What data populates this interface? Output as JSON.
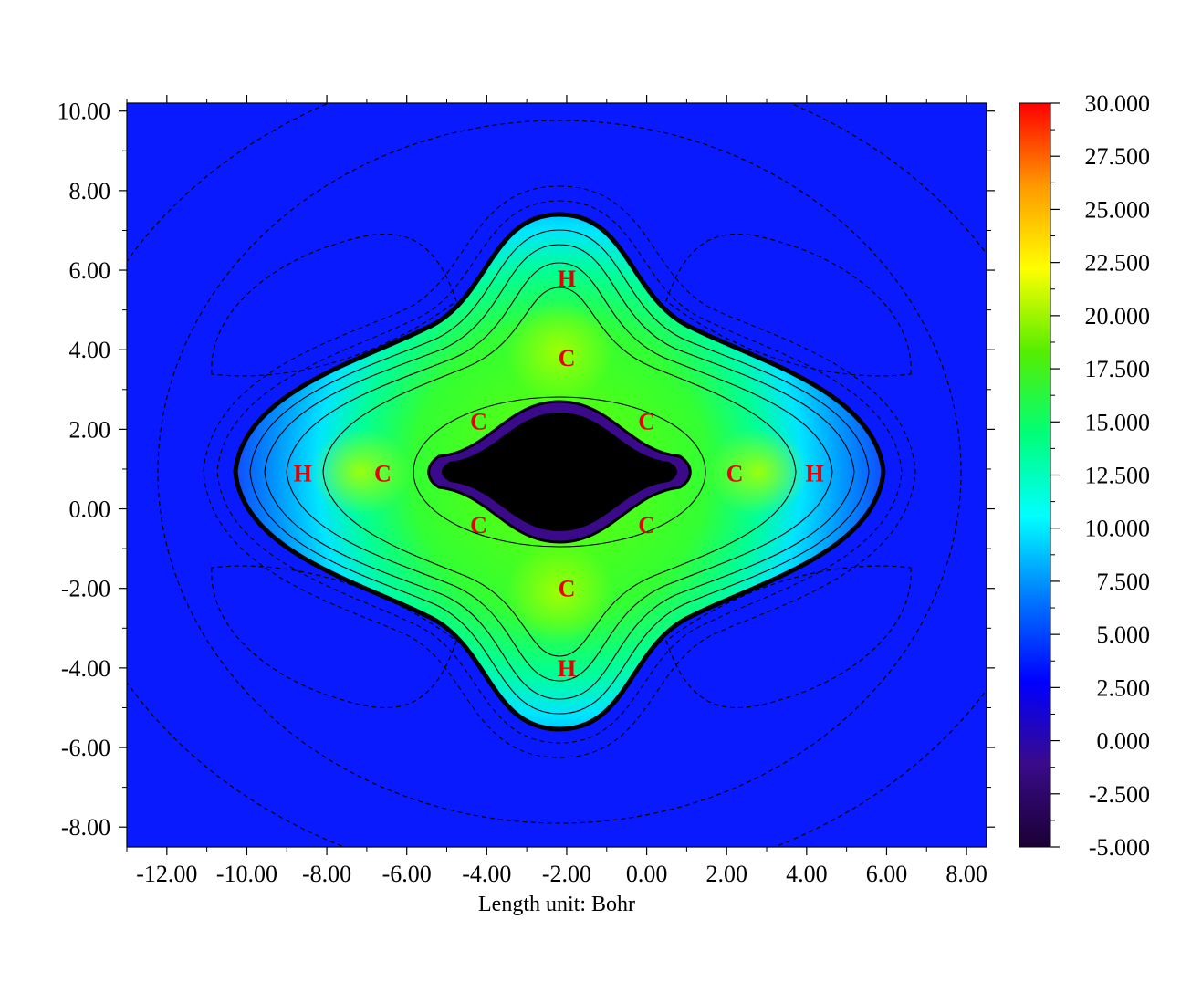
{
  "chart_data": {
    "type": "heatmap",
    "title": "",
    "xlabel": "Length unit: Bohr",
    "ylabel": "",
    "xlim": [
      -13.0,
      8.5
    ],
    "ylim": [
      -8.5,
      10.2
    ],
    "x_ticks": [
      "-12.00",
      "-10.00",
      "-8.00",
      "-6.00",
      "-4.00",
      "-2.00",
      "0.00",
      "2.00",
      "4.00",
      "6.00",
      "8.00"
    ],
    "y_ticks": [
      "10.00",
      "8.00",
      "6.00",
      "4.00",
      "2.00",
      "0.00",
      "-2.00",
      "-4.00",
      "-6.00",
      "-8.00"
    ],
    "colorbar": {
      "min": -5.0,
      "max": 30.0,
      "ticks": [
        "30.000",
        "27.500",
        "25.000",
        "22.500",
        "20.000",
        "17.500",
        "15.000",
        "12.500",
        "10.000",
        "7.500",
        "5.000",
        "2.500",
        "0.000",
        "-2.500",
        "-5.000"
      ],
      "colors": [
        "#1a0033",
        "#3a0a8a",
        "#0000ff",
        "#0077ff",
        "#00ffff",
        "#00ff77",
        "#55ee00",
        "#ffff00",
        "#ff9900",
        "#ff0000"
      ]
    },
    "background_color": "#0a1aff",
    "center_color": "#000000",
    "atoms": [
      {
        "label": "H",
        "x": -2.0,
        "y": 5.8
      },
      {
        "label": "C",
        "x": -2.0,
        "y": 3.8
      },
      {
        "label": "C",
        "x": -4.2,
        "y": 2.2
      },
      {
        "label": "C",
        "x": 0.0,
        "y": 2.2
      },
      {
        "label": "H",
        "x": -8.6,
        "y": 0.9
      },
      {
        "label": "C",
        "x": -6.6,
        "y": 0.9
      },
      {
        "label": "C",
        "x": 2.2,
        "y": 0.9
      },
      {
        "label": "H",
        "x": 4.2,
        "y": 0.9
      },
      {
        "label": "C",
        "x": -4.2,
        "y": -0.4
      },
      {
        "label": "C",
        "x": 0.0,
        "y": -0.4
      },
      {
        "label": "C",
        "x": -2.0,
        "y": -2.0
      },
      {
        "label": "H",
        "x": -2.0,
        "y": -4.0
      }
    ]
  }
}
